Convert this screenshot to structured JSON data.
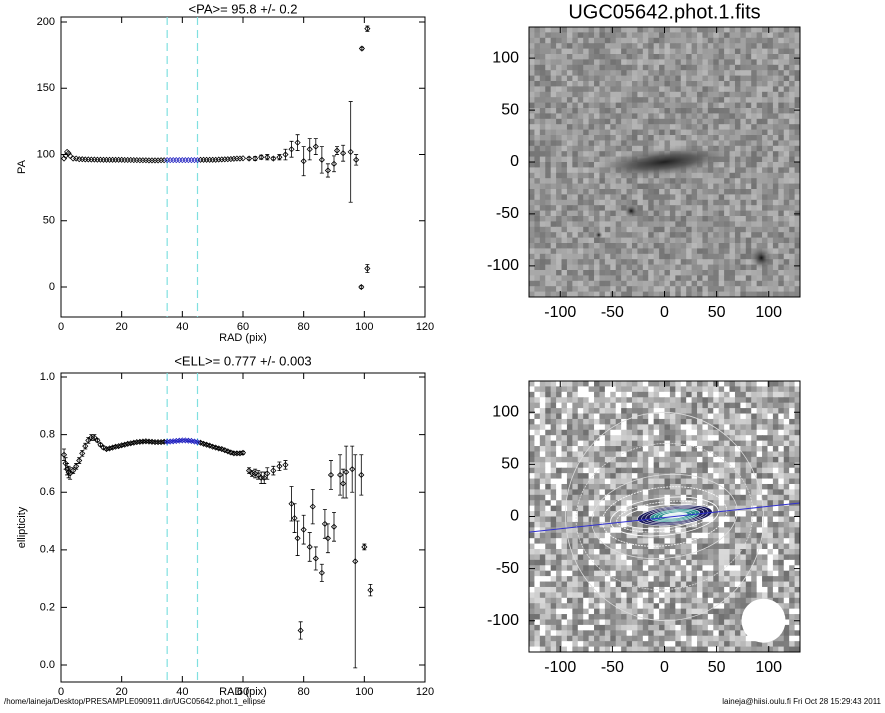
{
  "chart_data": [
    {
      "type": "scatter",
      "title": "<PA>=  95.8 +/-   0.2",
      "x_label": "RAD (pix)",
      "y_label": "PA",
      "xlim": [
        0,
        120
      ],
      "xticks": [
        0,
        20,
        40,
        60,
        80,
        100,
        120
      ],
      "ylim": [
        -22.6,
        203.8
      ],
      "yticks": [
        0,
        50,
        100,
        150,
        200
      ],
      "vlines": [
        35,
        45
      ],
      "vline_color": "#80e0e0",
      "series": [
        {
          "color": "#000000",
          "x": [
            1,
            1.5,
            2,
            2.5,
            3,
            4,
            5,
            6,
            7,
            8,
            9,
            10,
            11,
            12,
            13,
            14,
            15,
            16,
            17,
            18,
            19,
            20,
            21,
            22,
            23,
            24,
            25,
            26,
            27,
            28,
            29,
            30,
            31,
            32,
            33,
            34,
            46,
            47,
            48,
            49,
            50,
            51,
            52,
            53,
            54,
            55,
            56,
            57,
            58,
            59,
            60,
            62,
            64,
            66,
            68,
            70,
            72,
            74,
            76,
            78,
            80,
            82,
            84,
            86,
            88,
            90,
            91,
            93,
            95.5,
            97.3,
            99,
            99.2,
            101,
            101
          ],
          "values": [
            97,
            99,
            102,
            101,
            99,
            97,
            97,
            96.5,
            96.5,
            96.3,
            96.3,
            96.2,
            96.2,
            96.1,
            96.1,
            96,
            96,
            96,
            96,
            96,
            96,
            96,
            95.9,
            95.9,
            95.9,
            95.8,
            95.8,
            95.7,
            95.7,
            95.7,
            95.6,
            95.6,
            95.6,
            95.6,
            95.7,
            95.7,
            96,
            96,
            96,
            96,
            96,
            96,
            96.2,
            96.3,
            96.4,
            96.5,
            96.6,
            96.8,
            97,
            97,
            97.2,
            97,
            97,
            98,
            98,
            97,
            98,
            100,
            104,
            109,
            95,
            104,
            106,
            96,
            88,
            93,
            103,
            101,
            102,
            96,
            0,
            180,
            195,
            14
          ],
          "errors": [
            0.5,
            0.5,
            0.5,
            0.5,
            0.5,
            0.3,
            0.3,
            0.3,
            0.3,
            0.3,
            0.3,
            0.3,
            0.3,
            0.3,
            0.3,
            0.3,
            0.3,
            0.3,
            0.3,
            0.3,
            0.3,
            0.3,
            0.3,
            0.3,
            0.3,
            0.3,
            0.3,
            0.3,
            0.3,
            0.3,
            0.3,
            0.3,
            0.3,
            0.3,
            0.3,
            0.3,
            0.3,
            0.3,
            0.3,
            0.3,
            0.3,
            0.3,
            0.3,
            0.3,
            0.3,
            0.3,
            0.3,
            0.3,
            0.3,
            0.3,
            0.5,
            1,
            1.5,
            1.5,
            2,
            1,
            2,
            4,
            6,
            6,
            11,
            8,
            6,
            10,
            5,
            6,
            3,
            6,
            38,
            4,
            1,
            1,
            2,
            3
          ]
        },
        {
          "color": "#2020c0",
          "x": [
            35,
            36,
            37,
            38,
            39,
            40,
            41,
            42,
            43,
            44,
            45
          ],
          "values": [
            95.8,
            95.8,
            95.8,
            95.8,
            95.8,
            95.8,
            95.8,
            95.8,
            95.8,
            95.8,
            95.8
          ],
          "errors": [
            0.2,
            0.2,
            0.2,
            0.2,
            0.2,
            0.2,
            0.2,
            0.2,
            0.2,
            0.2,
            0.2
          ]
        }
      ]
    },
    {
      "type": "scatter",
      "title": "<ELL>= 0.777 +/-  0.003",
      "x_label": "RAD (pix)",
      "y_label": "ellipticity",
      "xlim": [
        0,
        120
      ],
      "xticks": [
        0,
        20,
        40,
        60,
        80,
        100,
        120
      ],
      "ylim": [
        -0.059,
        1.014
      ],
      "yticks": [
        {
          "value": 0,
          "label": "0.0"
        },
        {
          "value": 0.2,
          "label": "0.2"
        },
        {
          "value": 0.4,
          "label": "0.4"
        },
        {
          "value": 0.6,
          "label": "0.6"
        },
        {
          "value": 0.8,
          "label": "0.8"
        },
        {
          "value": 1,
          "label": "1.0"
        }
      ],
      "vlines": [
        35,
        45
      ],
      "vline_color": "#80e0e0",
      "series": [
        {
          "color": "#000000",
          "x": [
            1,
            1.5,
            2,
            2.5,
            3,
            4,
            5,
            6,
            7,
            8,
            9,
            10,
            11,
            12,
            13,
            14,
            15,
            16,
            17,
            18,
            19,
            20,
            21,
            22,
            23,
            24,
            25,
            26,
            27,
            28,
            29,
            30,
            31,
            32,
            33,
            34,
            46,
            47,
            48,
            49,
            50,
            51,
            52,
            53,
            54,
            55,
            56,
            57,
            58,
            59,
            60,
            62,
            63,
            64,
            65,
            66,
            67,
            68,
            70,
            72,
            74,
            76,
            77,
            78,
            79,
            80,
            82,
            83,
            84,
            86,
            87,
            88,
            89,
            90,
            92,
            93,
            94,
            96,
            97,
            99,
            100,
            102
          ],
          "values": [
            0.73,
            0.7,
            0.68,
            0.67,
            0.665,
            0.675,
            0.69,
            0.71,
            0.735,
            0.76,
            0.78,
            0.79,
            0.79,
            0.78,
            0.765,
            0.755,
            0.75,
            0.752,
            0.755,
            0.758,
            0.76,
            0.763,
            0.765,
            0.768,
            0.77,
            0.772,
            0.774,
            0.775,
            0.776,
            0.777,
            0.776,
            0.775,
            0.774,
            0.774,
            0.774,
            0.775,
            0.772,
            0.768,
            0.765,
            0.762,
            0.758,
            0.755,
            0.752,
            0.75,
            0.746,
            0.742,
            0.738,
            0.735,
            0.735,
            0.735,
            0.737,
            0.675,
            0.665,
            0.665,
            0.66,
            0.65,
            0.65,
            0.665,
            0.675,
            0.69,
            0.695,
            0.56,
            0.51,
            0.44,
            0.12,
            0.47,
            0.41,
            0.55,
            0.37,
            0.32,
            0.49,
            0.44,
            0.66,
            0.48,
            0.66,
            0.63,
            0.67,
            0.68,
            0.36,
            0.66,
            0.41,
            0.26
          ],
          "errors": [
            0.02,
            0.02,
            0.02,
            0.02,
            0.02,
            0.01,
            0.01,
            0.01,
            0.01,
            0.01,
            0.01,
            0.01,
            0.01,
            0.005,
            0.005,
            0.005,
            0.004,
            0.004,
            0.004,
            0.004,
            0.004,
            0.004,
            0.004,
            0.004,
            0.004,
            0.004,
            0.004,
            0.004,
            0.004,
            0.004,
            0.004,
            0.004,
            0.004,
            0.004,
            0.004,
            0.004,
            0.004,
            0.004,
            0.004,
            0.004,
            0.004,
            0.004,
            0.004,
            0.004,
            0.004,
            0.004,
            0.005,
            0.005,
            0.005,
            0.005,
            0.005,
            0.01,
            0.01,
            0.015,
            0.015,
            0.02,
            0.02,
            0.02,
            0.015,
            0.015,
            0.015,
            0.06,
            0.05,
            0.06,
            0.03,
            0.05,
            0.05,
            0.06,
            0.04,
            0.03,
            0.05,
            0.05,
            0.05,
            0.05,
            0.07,
            0.05,
            0.09,
            0.08,
            0.37,
            0.07,
            0.01,
            0.02
          ]
        },
        {
          "color": "#2020c0",
          "x": [
            35,
            36,
            37,
            38,
            39,
            40,
            41,
            42,
            43,
            44,
            45
          ],
          "values": [
            0.775,
            0.776,
            0.777,
            0.778,
            0.779,
            0.78,
            0.78,
            0.779,
            0.778,
            0.776,
            0.774
          ],
          "errors": [
            0.003,
            0.003,
            0.003,
            0.003,
            0.003,
            0.003,
            0.003,
            0.003,
            0.003,
            0.003,
            0.003
          ]
        }
      ]
    },
    {
      "type": "image",
      "title": "UGC05642.phot.1.fits",
      "xlim": [
        -130,
        130
      ],
      "xticks": [
        -100,
        -50,
        0,
        50,
        100
      ],
      "ylim": [
        -130,
        130
      ],
      "yticks": [
        -100,
        -50,
        0,
        50,
        100
      ]
    },
    {
      "type": "image",
      "xlim": [
        -130,
        130
      ],
      "xticks": [
        -100,
        -50,
        0,
        50,
        100
      ],
      "ylim": [
        -130,
        130
      ],
      "yticks": [
        -100,
        -50,
        0,
        50,
        100
      ]
    }
  ],
  "footer": {
    "left": "/home/laineja/Desktop/PRESAMPLE090911.dir/UGC05642.phot.1_ellipse",
    "right": "laineja@hiisi.oulu.fi  Fri Oct 28 15:29:43 2011"
  }
}
